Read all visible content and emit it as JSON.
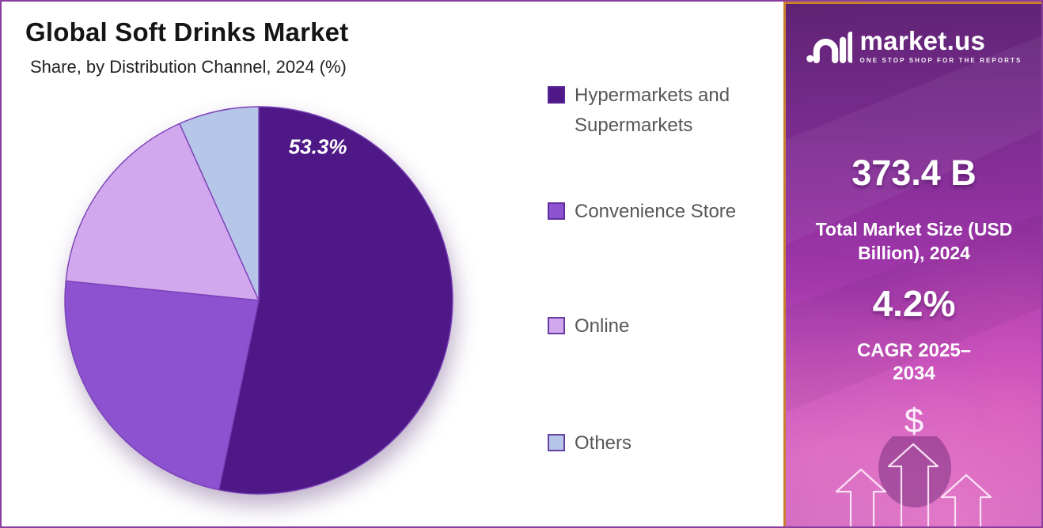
{
  "header": {
    "title": "Global Soft Drinks Market",
    "subtitle": "Share, by Distribution Channel, 2024 (%)"
  },
  "chart_data": {
    "type": "pie",
    "title": "Global Soft Drinks Market Share, by Distribution Channel, 2024 (%)",
    "unit": "percent",
    "direction": "clockwise",
    "start_angle_deg": 0,
    "slice_border": "#7b3fb8",
    "series": [
      {
        "name": "Hypermarkets and Supermarkets",
        "value": 53.3,
        "color": "#4e1987",
        "label": "53.3%"
      },
      {
        "name": "Convenience Store",
        "value": 23.3,
        "color": "#8c52cf"
      },
      {
        "name": "Online",
        "value": 16.7,
        "color": "#d1a8ee"
      },
      {
        "name": "Others",
        "value": 6.7,
        "color": "#b6c6e8"
      }
    ],
    "legend_position": "right"
  },
  "sidebar": {
    "brand": "market.us",
    "tagline": "ONE STOP SHOP FOR THE REPORTS",
    "stats": [
      {
        "value": "373.4 B",
        "label": "Total Market Size (USD Billion), 2024"
      },
      {
        "value": "4.2%",
        "label": "CAGR 2025–2034"
      }
    ],
    "currency_symbol": "$",
    "accent_border": "#c8802f",
    "gradient_top": "#5f2374",
    "gradient_bottom": "#c967c0"
  }
}
